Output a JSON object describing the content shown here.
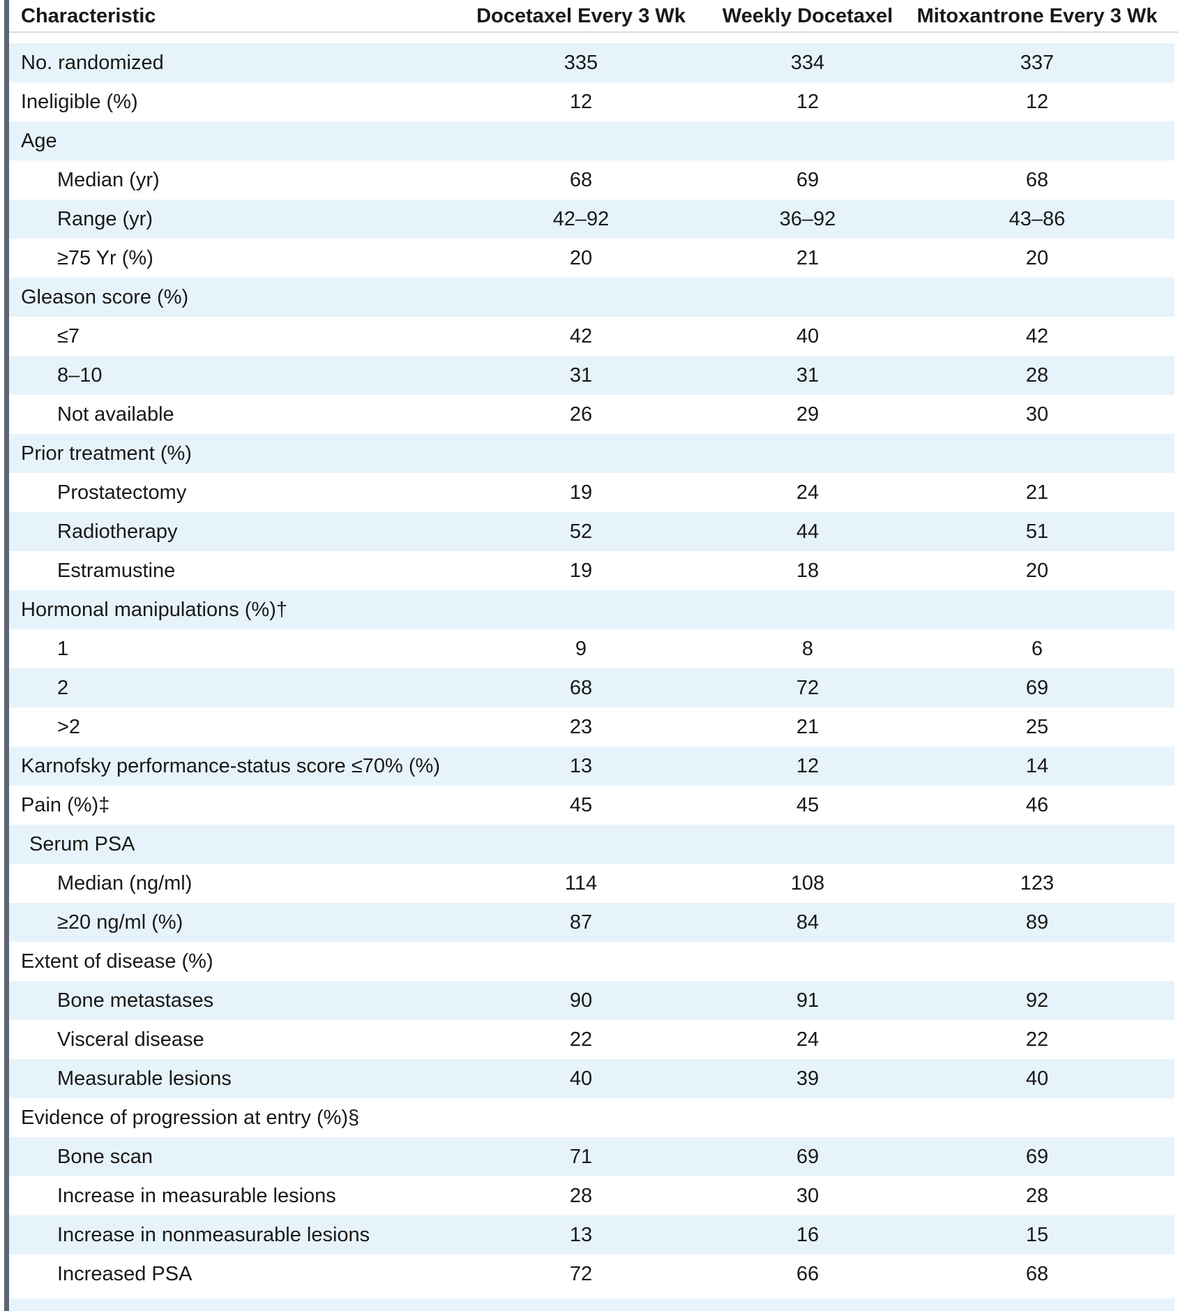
{
  "table": {
    "columns": [
      "Characteristic",
      "Docetaxel Every 3 Wk",
      "Weekly Docetaxel",
      "Mitoxantrone Every 3 Wk"
    ],
    "rows": [
      {
        "label": "No. randomized",
        "indent": 0,
        "values": [
          "335",
          "334",
          "337"
        ]
      },
      {
        "label": "Ineligible (%)",
        "indent": 0,
        "values": [
          "12",
          "12",
          "12"
        ]
      },
      {
        "label": "Age",
        "indent": 0,
        "values": [
          "",
          "",
          ""
        ]
      },
      {
        "label": "Median (yr)",
        "indent": 1,
        "values": [
          "68",
          "69",
          "68"
        ]
      },
      {
        "label": "Range (yr)",
        "indent": 1,
        "values": [
          "42–92",
          "36–92",
          "43–86"
        ]
      },
      {
        "label": "≥75 Yr (%)",
        "indent": 1,
        "values": [
          "20",
          "21",
          "20"
        ]
      },
      {
        "label": "Gleason score (%)",
        "indent": 0,
        "values": [
          "",
          "",
          ""
        ]
      },
      {
        "label": "≤7",
        "indent": 1,
        "values": [
          "42",
          "40",
          "42"
        ]
      },
      {
        "label": "8–10",
        "indent": 1,
        "values": [
          "31",
          "31",
          "28"
        ]
      },
      {
        "label": "Not available",
        "indent": 1,
        "values": [
          "26",
          "29",
          "30"
        ]
      },
      {
        "label": "Prior treatment (%)",
        "indent": 0,
        "values": [
          "",
          "",
          ""
        ]
      },
      {
        "label": "Prostatectomy",
        "indent": 1,
        "values": [
          "19",
          "24",
          "21"
        ]
      },
      {
        "label": "Radiotherapy",
        "indent": 1,
        "values": [
          "52",
          "44",
          "51"
        ]
      },
      {
        "label": "Estramustine",
        "indent": 1,
        "values": [
          "19",
          "18",
          "20"
        ]
      },
      {
        "label": "Hormonal manipulations (%)†",
        "indent": 0,
        "values": [
          "",
          "",
          ""
        ]
      },
      {
        "label": "1",
        "indent": 1,
        "values": [
          "9",
          "8",
          "6"
        ]
      },
      {
        "label": "2",
        "indent": 1,
        "values": [
          "68",
          "72",
          "69"
        ]
      },
      {
        "label": ">2",
        "indent": 1,
        "values": [
          "23",
          "21",
          "25"
        ]
      },
      {
        "label": "Karnofsky performance-status score ≤70% (%)",
        "indent": 0,
        "values": [
          "13",
          "12",
          "14"
        ]
      },
      {
        "label": "Pain (%)‡",
        "indent": 0,
        "values": [
          "45",
          "45",
          "46"
        ]
      },
      {
        "label": "Serum PSA",
        "indent": 0.5,
        "values": [
          "",
          "",
          ""
        ]
      },
      {
        "label": "Median (ng/ml)",
        "indent": 1,
        "values": [
          "114",
          "108",
          "123"
        ]
      },
      {
        "label": "≥20 ng/ml (%)",
        "indent": 1,
        "values": [
          "87",
          "84",
          "89"
        ]
      },
      {
        "label": "Extent of disease (%)",
        "indent": 0,
        "values": [
          "",
          "",
          ""
        ]
      },
      {
        "label": "Bone metastases",
        "indent": 1,
        "values": [
          "90",
          "91",
          "92"
        ]
      },
      {
        "label": "Visceral disease",
        "indent": 1,
        "values": [
          "22",
          "24",
          "22"
        ]
      },
      {
        "label": "Measurable lesions",
        "indent": 1,
        "values": [
          "40",
          "39",
          "40"
        ]
      },
      {
        "label": "Evidence of progression at entry (%)§",
        "indent": 0,
        "values": [
          "",
          "",
          ""
        ]
      },
      {
        "label": "Bone scan",
        "indent": 1,
        "values": [
          "71",
          "69",
          "69"
        ]
      },
      {
        "label": "Increase in measurable lesions",
        "indent": 1,
        "values": [
          "28",
          "30",
          "28"
        ]
      },
      {
        "label": "Increase in nonmeasurable lesions",
        "indent": 1,
        "values": [
          "13",
          "16",
          "15"
        ]
      },
      {
        "label": "Increased PSA",
        "indent": 1,
        "values": [
          "72",
          "66",
          "68"
        ]
      }
    ]
  },
  "style": {
    "stripe_blue": "#e7f3fb",
    "row_white": "#ffffff",
    "left_bar": "#5b6570",
    "header_rule": "#d9dcde",
    "text": "#191919"
  }
}
